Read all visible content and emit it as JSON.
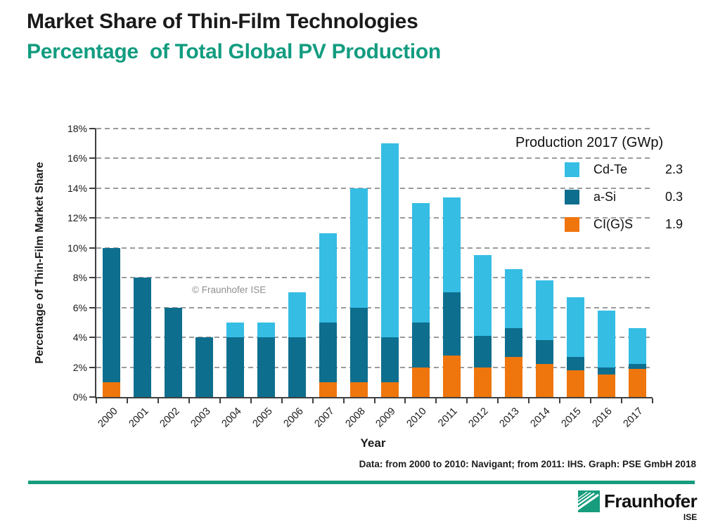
{
  "header": {
    "title": "Market Share of Thin-Film Technologies",
    "subtitle": "Percentage  of Total Global PV Production"
  },
  "chart_data": {
    "type": "bar",
    "stacked": true,
    "title": "Market Share of Thin-Film Technologies — Percentage of Total Global PV Production",
    "xlabel": "Year",
    "ylabel": "Percentage of Thin-Film Market Share",
    "ylim": [
      0,
      18
    ],
    "yticks": [
      0,
      2,
      4,
      6,
      8,
      10,
      12,
      14,
      16,
      18
    ],
    "ytick_suffix": "%",
    "grid": "dashed-horizontal",
    "watermark": "© Fraunhofer ISE",
    "categories": [
      "2000",
      "2001",
      "2002",
      "2003",
      "2004",
      "2005",
      "2006",
      "2007",
      "2008",
      "2009",
      "2010",
      "2011",
      "2012",
      "2013",
      "2014",
      "2015",
      "2016",
      "2017"
    ],
    "series": [
      {
        "name": "CI(G)S",
        "color": "#ef760d",
        "stack_order": 0,
        "values": [
          1.0,
          0,
          0,
          0,
          0,
          0,
          0,
          1.0,
          1.0,
          1.0,
          2.0,
          2.8,
          2.0,
          2.7,
          2.2,
          1.8,
          1.5,
          1.9
        ]
      },
      {
        "name": "a-Si",
        "color": "#0e6e8e",
        "stack_order": 1,
        "values": [
          9.0,
          8.0,
          6.0,
          4.0,
          4.0,
          4.0,
          4.0,
          4.0,
          5.0,
          3.0,
          3.0,
          4.2,
          2.1,
          1.9,
          1.6,
          0.9,
          0.5,
          0.3
        ]
      },
      {
        "name": "Cd-Te",
        "color": "#35bde4",
        "stack_order": 2,
        "values": [
          0,
          0,
          0,
          0,
          1.0,
          1.0,
          3.0,
          6.0,
          8.0,
          13.0,
          8.0,
          6.4,
          5.4,
          4.0,
          4.0,
          4.0,
          3.8,
          2.4
        ]
      }
    ],
    "totals": [
      10,
      8,
      6,
      4,
      5,
      5,
      7,
      11,
      14,
      17,
      13,
      13.4,
      9.5,
      8.6,
      7.8,
      6.7,
      5.8,
      4.6
    ],
    "legend_position": "top-right"
  },
  "legend": {
    "title": "Production 2017 (GWp)",
    "items": [
      {
        "label": "Cd-Te",
        "value": "2.3",
        "color": "#35bde4"
      },
      {
        "label": "a-Si",
        "value": "0.3",
        "color": "#0e6e8e"
      },
      {
        "label": "CI(G)S",
        "value": "1.9",
        "color": "#ef760d"
      }
    ]
  },
  "footer": {
    "source": "Data: from 2000 to 2010: Navigant; from 2011: IHS. Graph: PSE GmbH 2018"
  },
  "logo": {
    "name": "Fraunhofer",
    "sub": "ISE"
  },
  "colors": {
    "accent_teal": "#179c7d",
    "subtitle_teal": "#129c80",
    "axis": "#3f3f3f",
    "gridline": "#9b9b9b"
  }
}
